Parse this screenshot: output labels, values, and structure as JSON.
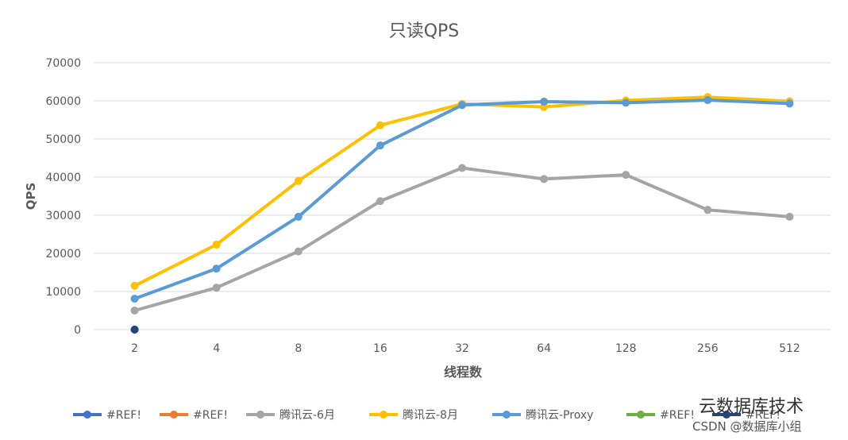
{
  "chart_data": {
    "type": "line",
    "title": "只读QPS",
    "xlabel": "线程数",
    "ylabel": "QPS",
    "categories": [
      "2",
      "4",
      "8",
      "16",
      "32",
      "64",
      "128",
      "256",
      "512"
    ],
    "ylim": [
      0,
      70000
    ],
    "yticks": [
      0,
      10000,
      20000,
      30000,
      40000,
      50000,
      60000,
      70000
    ],
    "grid": true,
    "legend_position": "bottom",
    "series": [
      {
        "name": "#REF!",
        "color": "#4472c4",
        "values": [
          0,
          null,
          null,
          null,
          null,
          null,
          null,
          null,
          null
        ]
      },
      {
        "name": "#REF!",
        "color": "#ed7d31",
        "values": [
          null,
          null,
          null,
          null,
          null,
          null,
          null,
          null,
          null
        ]
      },
      {
        "name": "腾讯云-6月",
        "color": "#a5a5a5",
        "values": [
          5000,
          11000,
          20500,
          33700,
          42400,
          39500,
          40600,
          31400,
          29600
        ]
      },
      {
        "name": "腾讯云-8月",
        "color": "#ffc000",
        "values": [
          11500,
          22300,
          39000,
          53600,
          59200,
          58400,
          60100,
          61000,
          59900
        ]
      },
      {
        "name": "腾讯云-Proxy",
        "color": "#5b9bd5",
        "values": [
          8100,
          16000,
          29600,
          48300,
          58900,
          59800,
          59500,
          60200,
          59300
        ]
      },
      {
        "name": "#REF!",
        "color": "#70ad47",
        "values": [
          null,
          null,
          null,
          null,
          null,
          null,
          null,
          null,
          null
        ]
      },
      {
        "name": "#REF!",
        "color": "#264478",
        "values": [
          0,
          null,
          null,
          null,
          null,
          null,
          null,
          null,
          null
        ]
      }
    ]
  },
  "watermark": {
    "line1": "云数据库技术",
    "line2": "CSDN @数据库小组"
  }
}
